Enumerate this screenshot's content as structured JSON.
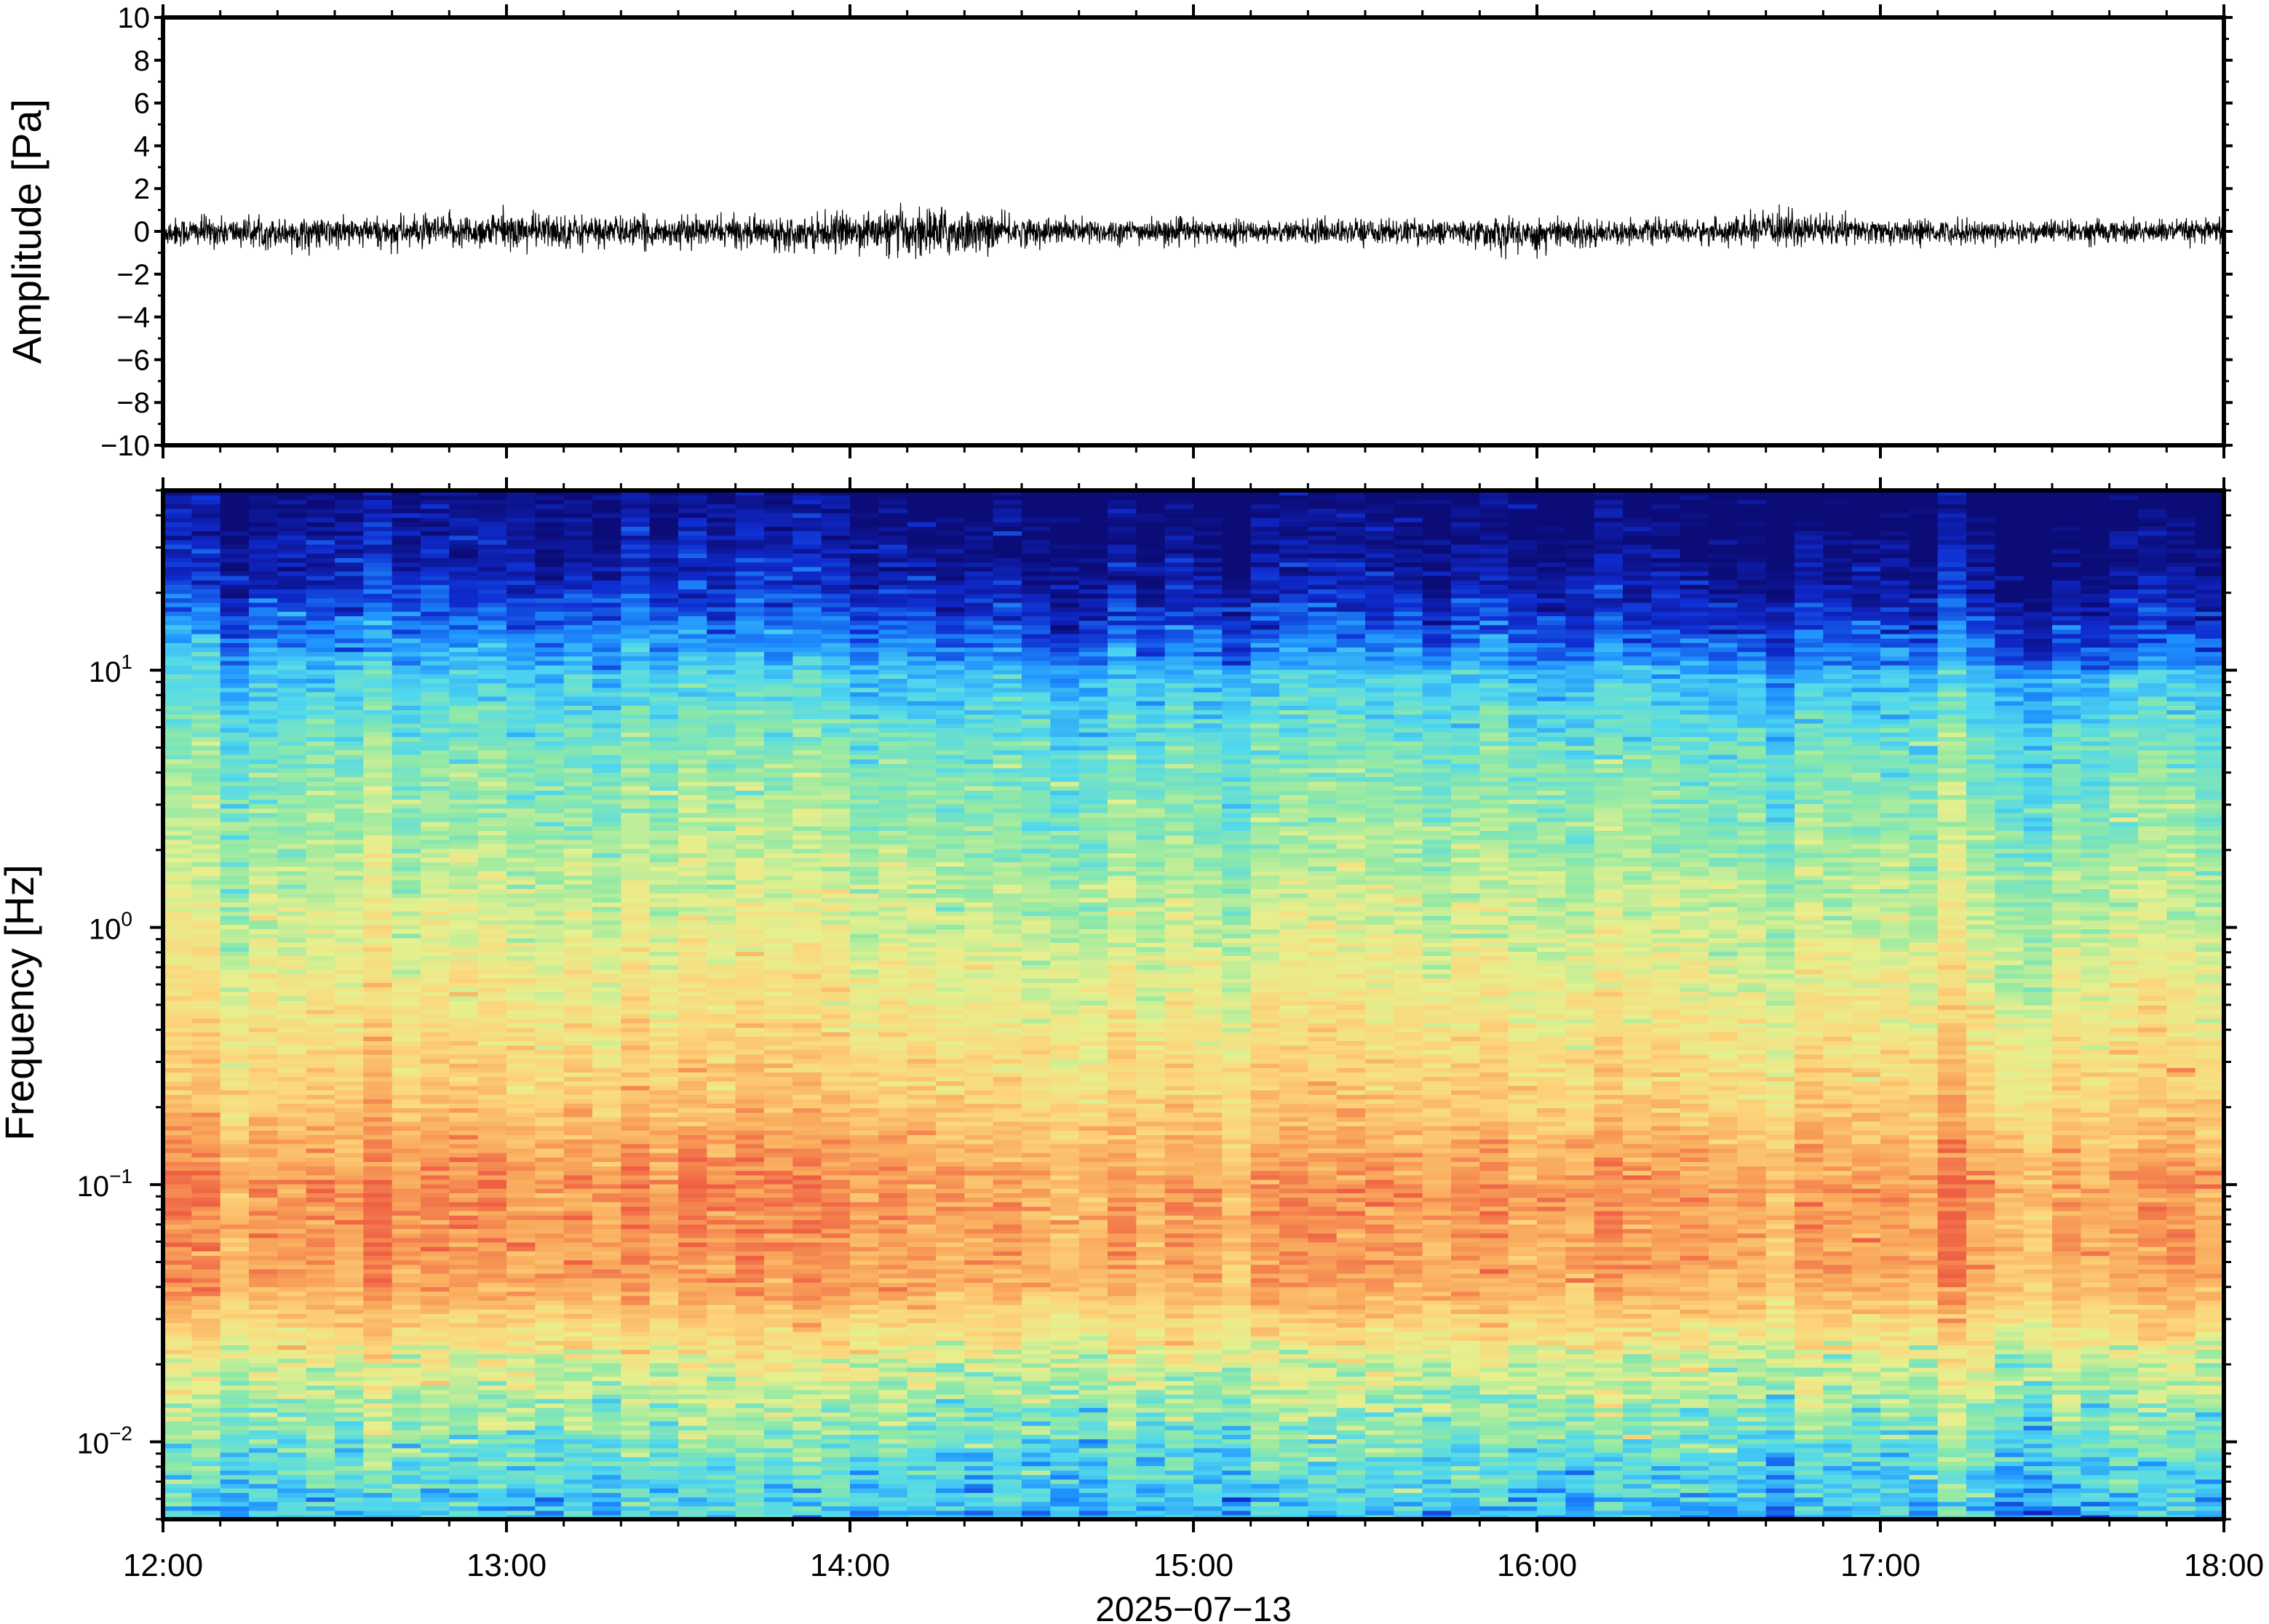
{
  "chart_data": [
    {
      "type": "line",
      "ylabel": "Amplitude [Pa]",
      "ylim": [
        -10,
        10
      ],
      "yticks": [
        "10",
        "8",
        "6",
        "4",
        "2",
        "0",
        "−2",
        "−4",
        "−6",
        "−8",
        "−10"
      ],
      "xlim": [
        "12:00",
        "18:00"
      ],
      "series": [
        {
          "color": "#000000",
          "envelope_minutes": [
            0,
            15,
            30,
            45,
            60,
            75,
            90,
            105,
            120,
            135,
            150,
            165,
            180,
            195,
            210,
            225,
            240,
            255,
            270,
            285,
            300,
            315,
            330,
            345,
            360
          ],
          "envelope_upper": [
            0.9,
            0.8,
            0.8,
            0.9,
            1.3,
            1.0,
            0.9,
            0.9,
            1.1,
            1.5,
            0.9,
            0.8,
            0.7,
            0.7,
            0.8,
            0.7,
            0.8,
            0.7,
            0.7,
            1.4,
            0.7,
            0.7,
            0.7,
            0.7,
            0.7
          ],
          "envelope_lower": [
            -1.0,
            -1.0,
            -1.2,
            -1.0,
            -1.1,
            -1.0,
            -0.9,
            -1.0,
            -1.1,
            -1.8,
            -0.9,
            -0.8,
            -0.8,
            -0.7,
            -0.8,
            -0.8,
            -1.6,
            -0.7,
            -0.8,
            -0.8,
            -0.8,
            -0.8,
            -0.7,
            -0.8,
            -0.8
          ]
        }
      ],
      "grid": false
    },
    {
      "type": "heatmap",
      "ylabel": "Frequency [Hz]",
      "xlabel": "2025−07−13",
      "yscale": "log",
      "ylim": [
        0.005,
        50
      ],
      "yticks": [
        {
          "base": "10",
          "exp": "1",
          "value": 10
        },
        {
          "base": "10",
          "exp": "0",
          "value": 1
        },
        {
          "base": "10",
          "exp": "−1",
          "value": 0.1
        },
        {
          "base": "10",
          "exp": "−2",
          "value": 0.01
        }
      ],
      "xticks": [
        "12:00",
        "13:00",
        "14:00",
        "15:00",
        "16:00",
        "17:00",
        "18:00"
      ],
      "colormap": [
        "#0c0c78",
        "#0f2bcf",
        "#1e90ff",
        "#50d8ee",
        "#8fe9a6",
        "#e6f08e",
        "#fdd57b",
        "#f9a85c",
        "#ef5f43"
      ],
      "power_profile": {
        "log10_freq": [
          -2.3,
          -2.0,
          -1.7,
          -1.4,
          -1.0,
          -0.6,
          0.0,
          0.7,
          1.0,
          1.3,
          1.7
        ],
        "level": [
          0.32,
          0.45,
          0.6,
          0.86,
          0.9,
          0.75,
          0.6,
          0.45,
          0.33,
          0.12,
          0.0
        ]
      },
      "grid": false
    }
  ]
}
